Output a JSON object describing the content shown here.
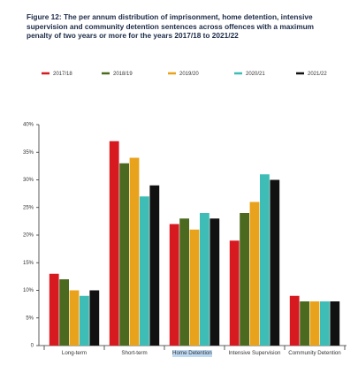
{
  "chart_data": {
    "type": "bar",
    "title": "Figure 12: The per annum distribution of imprisonment, home detention, intensive supervision and community detention sentences across offences with a maximum penalty of two years or more for the years 2017/18 to 2021/22",
    "categories": [
      "Long-term",
      "Short-term",
      "Home Detention",
      "Intensive Supervision",
      "Community Detention"
    ],
    "series": [
      {
        "name": "2017/18",
        "color": "#d71920",
        "values": [
          13,
          37,
          22,
          19,
          9
        ]
      },
      {
        "name": "2018/19",
        "color": "#4b6a1f",
        "values": [
          12,
          33,
          23,
          24,
          8
        ]
      },
      {
        "name": "2019/20",
        "color": "#e9a21b",
        "values": [
          10,
          34,
          21,
          26,
          8
        ]
      },
      {
        "name": "2020/21",
        "color": "#3dbdb5",
        "values": [
          9,
          27,
          24,
          31,
          8
        ]
      },
      {
        "name": "2021/22",
        "color": "#111111",
        "values": [
          10,
          29,
          23,
          30,
          8
        ]
      }
    ],
    "ylim": [
      0,
      40
    ],
    "yticks": [
      0,
      {
        "value": 5,
        "label": "5%"
      },
      {
        "value": 10,
        "label": "10%"
      },
      {
        "value": 15,
        "label": "15%"
      },
      {
        "value": 20,
        "label": "20%"
      },
      {
        "value": 25,
        "label": "25%"
      },
      {
        "value": 30,
        "label": "30%"
      },
      {
        "value": 35,
        "label": "35%"
      },
      {
        "value": 40,
        "label": "40%"
      }
    ],
    "grid": false
  }
}
